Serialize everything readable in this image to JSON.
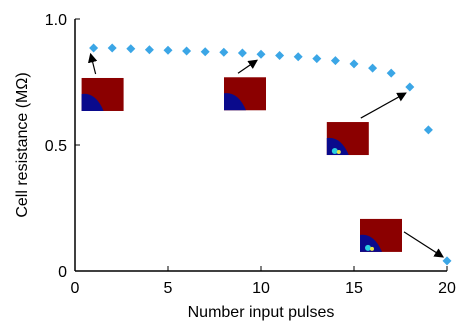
{
  "chart_data": {
    "type": "scatter",
    "xlabel": "Number input pulses",
    "ylabel": "Cell resistance (MΩ)",
    "xlim": [
      0,
      20
    ],
    "ylim": [
      0,
      1.0
    ],
    "x_ticks": [
      0,
      5,
      10,
      15,
      20
    ],
    "y_ticks": [
      0,
      0.5,
      1.0
    ],
    "x_tick_labels": [
      "0",
      "5",
      "10",
      "15",
      "20"
    ],
    "y_tick_labels": [
      "0",
      "0.5",
      "1.0"
    ],
    "grid": false,
    "series": [
      {
        "marker": "diamond",
        "color": "#3ba6e6",
        "x": [
          1,
          2,
          3,
          4,
          5,
          6,
          7,
          8,
          9,
          10,
          11,
          12,
          13,
          14,
          15,
          16,
          17,
          18,
          19,
          20
        ],
        "y": [
          0.885,
          0.885,
          0.882,
          0.878,
          0.876,
          0.873,
          0.87,
          0.868,
          0.865,
          0.86,
          0.855,
          0.85,
          0.843,
          0.835,
          0.822,
          0.805,
          0.785,
          0.73,
          0.56,
          0.04
        ]
      }
    ],
    "inset_images": [
      {
        "at_x": 1,
        "at_y": 0.885,
        "description": "simulation-inset-1"
      },
      {
        "at_x": 10,
        "at_y": 0.86,
        "description": "simulation-inset-10"
      },
      {
        "at_x": 18,
        "at_y": 0.73,
        "description": "simulation-inset-18"
      },
      {
        "at_x": 20,
        "at_y": 0.04,
        "description": "simulation-inset-20"
      }
    ]
  },
  "colors": {
    "marker": "#3ba6e6",
    "inset_background": "#8b0000",
    "inset_blob": "#0a0a8c",
    "axis": "#000000"
  }
}
